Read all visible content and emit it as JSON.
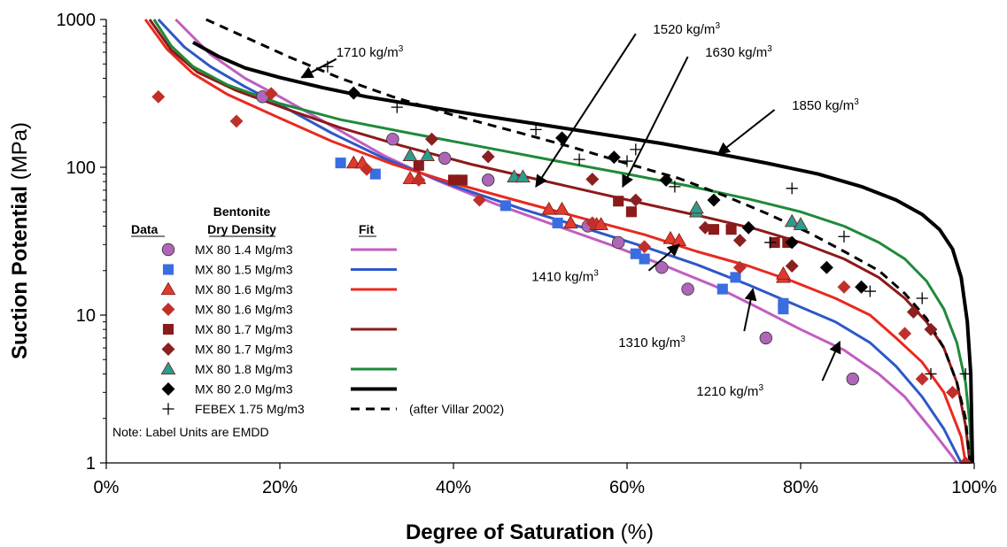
{
  "chart_data": {
    "type": "scatter",
    "xlabel_bold": "Degree of Saturation",
    "xlabel_unit": " (%)",
    "ylabel_bold": "Suction Potential",
    "ylabel_unit": " (MPa)",
    "xlim": [
      0,
      100
    ],
    "ylim": [
      1,
      1000
    ],
    "yscale": "log",
    "x_ticks": [
      {
        "v": 0,
        "label": "0%"
      },
      {
        "v": 20,
        "label": "20%"
      },
      {
        "v": 40,
        "label": "40%"
      },
      {
        "v": 60,
        "label": "60%"
      },
      {
        "v": 80,
        "label": "80%"
      },
      {
        "v": 100,
        "label": "100%"
      }
    ],
    "y_ticks": [
      {
        "v": 1,
        "label": "1"
      },
      {
        "v": 10,
        "label": "10"
      },
      {
        "v": 100,
        "label": "100"
      },
      {
        "v": 1000,
        "label": "1000"
      }
    ],
    "grid": false,
    "legend": {
      "title_line1": "Bentonite",
      "col_data": "Data",
      "col_density": "Dry Density",
      "col_fit": "Fit",
      "note": "Note:  Label Units are EMDD",
      "febex_note": "(after Villar 2002)"
    },
    "series": [
      {
        "name": "MX 80 1.4 Mg/m3",
        "marker": "circle",
        "color": "#b066b8",
        "points": [
          [
            18,
            300
          ],
          [
            33,
            155
          ],
          [
            39,
            115
          ],
          [
            44,
            82
          ],
          [
            55.5,
            40
          ],
          [
            59,
            31
          ],
          [
            64,
            21
          ],
          [
            67,
            15
          ],
          [
            76,
            7
          ],
          [
            86,
            3.7
          ]
        ]
      },
      {
        "name": "MX 80 1.5 Mg/m3",
        "marker": "square",
        "color": "#3a6ee0",
        "points": [
          [
            27,
            107
          ],
          [
            31,
            90
          ],
          [
            46,
            55
          ],
          [
            52,
            42
          ],
          [
            61,
            26
          ],
          [
            62,
            24
          ],
          [
            71,
            15
          ],
          [
            72.5,
            18
          ],
          [
            78,
            12
          ],
          [
            78,
            11
          ]
        ]
      },
      {
        "name": "MX 80 1.6 Mg/m3",
        "marker": "triangle",
        "color": "#e03a30",
        "points": [
          [
            28.5,
            107
          ],
          [
            29.5,
            107
          ],
          [
            35,
            84
          ],
          [
            36,
            84
          ],
          [
            51,
            52
          ],
          [
            52.5,
            52
          ],
          [
            53.5,
            42
          ],
          [
            56.5,
            41
          ],
          [
            57,
            41
          ],
          [
            65,
            33
          ],
          [
            66,
            32
          ],
          [
            78,
            18
          ],
          [
            78,
            19
          ]
        ]
      },
      {
        "name": "MX 80 1.6 Mg/m3",
        "marker": "diamond",
        "color": "#c0302a",
        "points": [
          [
            6,
            300
          ],
          [
            15,
            205
          ],
          [
            19,
            315
          ],
          [
            30,
            97
          ],
          [
            36,
            82
          ],
          [
            43,
            60
          ],
          [
            56,
            42
          ],
          [
            62,
            29
          ],
          [
            73,
            21
          ],
          [
            85,
            15.5
          ],
          [
            92,
            7.5
          ],
          [
            94,
            3.7
          ],
          [
            97.5,
            3
          ],
          [
            99,
            1
          ]
        ]
      },
      {
        "name": "MX 80 1.7 Mg/m3",
        "marker": "square",
        "color": "#8b1a1a",
        "points": [
          [
            36,
            103
          ],
          [
            40,
            82
          ],
          [
            41,
            82
          ],
          [
            59,
            59
          ],
          [
            60.5,
            50
          ],
          [
            70,
            38
          ],
          [
            72,
            38
          ],
          [
            77,
            31
          ],
          [
            78.5,
            31
          ]
        ]
      },
      {
        "name": "MX 80 1.7 Mg/m3",
        "marker": "diamond",
        "color": "#8b2020",
        "points": [
          [
            37.5,
            155
          ],
          [
            44,
            118
          ],
          [
            56,
            83
          ],
          [
            61,
            60
          ],
          [
            69,
            39
          ],
          [
            73,
            32
          ],
          [
            79,
            21.5
          ],
          [
            93,
            10.5
          ],
          [
            95,
            8
          ]
        ]
      },
      {
        "name": "MX 80 1.8 Mg/m3",
        "marker": "triangle",
        "color": "#2a9d8f",
        "points": [
          [
            35,
            120
          ],
          [
            37,
            120
          ],
          [
            47,
            86
          ],
          [
            48,
            86
          ],
          [
            68,
            50
          ],
          [
            68,
            53
          ],
          [
            79,
            43
          ],
          [
            80,
            41
          ]
        ]
      },
      {
        "name": "MX 80 2.0 Mg/m3",
        "marker": "diamond",
        "color": "#000000",
        "points": [
          [
            28.5,
            318
          ],
          [
            52.5,
            158
          ],
          [
            58.5,
            117
          ],
          [
            64.5,
            82
          ],
          [
            70,
            60
          ],
          [
            74,
            39
          ],
          [
            79,
            31
          ],
          [
            83,
            21
          ],
          [
            87,
            15.5
          ]
        ]
      },
      {
        "name": "FEBEX 1.75 Mg/m3",
        "marker": "plus",
        "color": "#000000",
        "points": [
          [
            25.5,
            480
          ],
          [
            33.5,
            255
          ],
          [
            49.5,
            180
          ],
          [
            54.5,
            113
          ],
          [
            60,
            110
          ],
          [
            61,
            132
          ],
          [
            65.5,
            74
          ],
          [
            76.5,
            31
          ],
          [
            79,
            72
          ],
          [
            85,
            34
          ],
          [
            88,
            14.5
          ],
          [
            94,
            13
          ],
          [
            95,
            4
          ],
          [
            99,
            4
          ]
        ]
      }
    ],
    "fits": [
      {
        "legend_index": 0,
        "color": "#c05ec0",
        "width": 3,
        "points": [
          [
            8,
            1000
          ],
          [
            12,
            580
          ],
          [
            16,
            400
          ],
          [
            20,
            300
          ],
          [
            26,
            190
          ],
          [
            32,
            120
          ],
          [
            38,
            82
          ],
          [
            45,
            56
          ],
          [
            52,
            40
          ],
          [
            58,
            30
          ],
          [
            64,
            22
          ],
          [
            70,
            15.8
          ],
          [
            75,
            11.3
          ],
          [
            80,
            8
          ],
          [
            85,
            5.8
          ],
          [
            89,
            4
          ],
          [
            92,
            2.8
          ],
          [
            95,
            1.7
          ],
          [
            97.5,
            1.1
          ],
          [
            98,
            1
          ]
        ]
      },
      {
        "legend_index": 1,
        "color": "#2e58c8",
        "width": 3,
        "points": [
          [
            6,
            1000
          ],
          [
            9,
            650
          ],
          [
            12,
            480
          ],
          [
            16,
            350
          ],
          [
            20,
            265
          ],
          [
            26,
            170
          ],
          [
            32,
            115
          ],
          [
            40,
            75
          ],
          [
            48,
            52
          ],
          [
            55,
            39
          ],
          [
            62,
            29
          ],
          [
            68,
            22
          ],
          [
            74,
            16
          ],
          [
            79,
            12
          ],
          [
            84,
            9
          ],
          [
            88,
            6.5
          ],
          [
            91,
            4.5
          ],
          [
            94,
            2.8
          ],
          [
            96.5,
            1.7
          ],
          [
            98.5,
            1
          ]
        ]
      },
      {
        "legend_index": 2,
        "color": "#e82a20",
        "width": 3,
        "points": [
          [
            4.5,
            1000
          ],
          [
            7,
            630
          ],
          [
            10,
            430
          ],
          [
            14,
            310
          ],
          [
            20,
            215
          ],
          [
            26,
            150
          ],
          [
            33,
            105
          ],
          [
            40,
            78
          ],
          [
            48,
            58
          ],
          [
            55,
            45
          ],
          [
            62,
            35
          ],
          [
            68,
            27
          ],
          [
            74,
            21.5
          ],
          [
            79,
            17
          ],
          [
            84,
            13
          ],
          [
            88,
            10
          ],
          [
            91,
            7
          ],
          [
            94,
            4.8
          ],
          [
            96.5,
            3
          ],
          [
            98.5,
            1.5
          ],
          [
            99,
            1
          ]
        ]
      },
      {
        "legend_index": 4,
        "color": "#8b1a1a",
        "width": 3,
        "points": [
          [
            5,
            1000
          ],
          [
            7.5,
            620
          ],
          [
            10.5,
            440
          ],
          [
            15,
            330
          ],
          [
            21,
            245
          ],
          [
            27,
            185
          ],
          [
            34,
            140
          ],
          [
            42,
            105
          ],
          [
            50,
            82
          ],
          [
            57,
            66
          ],
          [
            63,
            55
          ],
          [
            69,
            46
          ],
          [
            75,
            38
          ],
          [
            80,
            31
          ],
          [
            85,
            24
          ],
          [
            89,
            18
          ],
          [
            92,
            13
          ],
          [
            94.5,
            9
          ],
          [
            96.5,
            6
          ],
          [
            98,
            3.5
          ],
          [
            99,
            1.8
          ],
          [
            99.5,
            1
          ]
        ]
      },
      {
        "legend_index": 6,
        "color": "#1f8a3a",
        "width": 3,
        "points": [
          [
            5.5,
            1000
          ],
          [
            7.5,
            660
          ],
          [
            10,
            480
          ],
          [
            14,
            360
          ],
          [
            20,
            270
          ],
          [
            27,
            210
          ],
          [
            35,
            170
          ],
          [
            44,
            135
          ],
          [
            52,
            110
          ],
          [
            60,
            90
          ],
          [
            67,
            75
          ],
          [
            74,
            61
          ],
          [
            80,
            50
          ],
          [
            85,
            40
          ],
          [
            89,
            31
          ],
          [
            92,
            24
          ],
          [
            94.5,
            17
          ],
          [
            96.5,
            11
          ],
          [
            98,
            6.5
          ],
          [
            99,
            3.5
          ],
          [
            99.5,
            1.8
          ],
          [
            99.7,
            1
          ]
        ]
      },
      {
        "legend_index": 7,
        "color": "#000000",
        "width": 4,
        "points": [
          [
            10,
            700
          ],
          [
            13,
            560
          ],
          [
            16,
            470
          ],
          [
            20,
            405
          ],
          [
            25,
            345
          ],
          [
            30,
            300
          ],
          [
            36,
            262
          ],
          [
            43,
            225
          ],
          [
            50,
            195
          ],
          [
            57,
            168
          ],
          [
            64,
            145
          ],
          [
            70,
            125
          ],
          [
            76,
            107
          ],
          [
            82,
            90
          ],
          [
            87,
            74
          ],
          [
            91,
            60
          ],
          [
            94,
            48
          ],
          [
            96,
            38
          ],
          [
            97.5,
            28
          ],
          [
            98.5,
            18
          ],
          [
            99.2,
            9
          ],
          [
            99.6,
            4
          ],
          [
            99.8,
            1
          ]
        ]
      },
      {
        "legend_index": 8,
        "color": "#000000",
        "width": 3,
        "dash": "10,7",
        "points": [
          [
            11.5,
            1000
          ],
          [
            16,
            760
          ],
          [
            21,
            560
          ],
          [
            27,
            400
          ],
          [
            33,
            300
          ],
          [
            40,
            225
          ],
          [
            47,
            175
          ],
          [
            54,
            135
          ],
          [
            60,
            106
          ],
          [
            66,
            84
          ],
          [
            71,
            65
          ],
          [
            76,
            49
          ],
          [
            81,
            36
          ],
          [
            85,
            27
          ],
          [
            89,
            20
          ],
          [
            92,
            14
          ],
          [
            94.5,
            9.5
          ],
          [
            96.5,
            6
          ],
          [
            98,
            3.5
          ],
          [
            99,
            2
          ],
          [
            99.5,
            1
          ]
        ]
      }
    ],
    "annotations": [
      {
        "label": "1710 kg/m",
        "sup": "3",
        "x": 26.5,
        "y": 560,
        "anchor": "start",
        "arrow_from": [
          26.5,
          540
        ],
        "arrow_to": [
          22.5,
          405
        ]
      },
      {
        "label": "1520 kg/m",
        "sup": "3",
        "x": 63,
        "y": 800,
        "anchor": "start",
        "arrow_from": [
          61,
          800
        ],
        "arrow_to": [
          49.5,
          74
        ]
      },
      {
        "label": "1630 kg/m",
        "sup": "3",
        "x": 69,
        "y": 560,
        "anchor": "start",
        "arrow_from": [
          67,
          560
        ],
        "arrow_to": [
          59.5,
          74
        ]
      },
      {
        "label": "1850 kg/m",
        "sup": "3",
        "x": 79,
        "y": 245,
        "anchor": "start",
        "arrow_from": [
          77,
          245
        ],
        "arrow_to": [
          70.5,
          123
        ]
      },
      {
        "label": "1410 kg/m",
        "sup": "3",
        "x": 49,
        "y": 17,
        "anchor": "start",
        "arrow_from": [
          62.5,
          20
        ],
        "arrow_to": [
          66,
          30
        ]
      },
      {
        "label": "1310 kg/m",
        "sup": "3",
        "x": 59,
        "y": 6.1,
        "anchor": "start",
        "arrow_from": [
          73.5,
          7.8
        ],
        "arrow_to": [
          74.5,
          15
        ]
      },
      {
        "label": "1210 kg/m",
        "sup": "3",
        "x": 68,
        "y": 2.85,
        "anchor": "start",
        "arrow_from": [
          82.5,
          3.6
        ],
        "arrow_to": [
          84.5,
          6.6
        ]
      }
    ]
  }
}
